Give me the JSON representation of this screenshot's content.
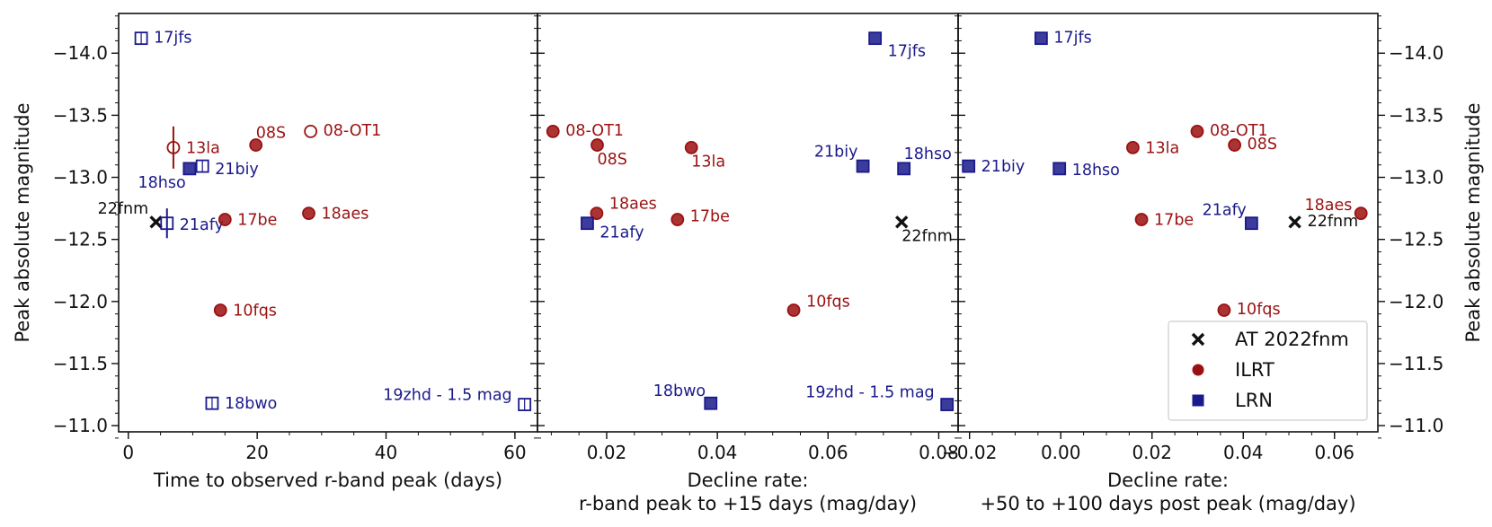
{
  "colors": {
    "ILRT": "#9b1111",
    "LRN": "#1a1a8c",
    "AT": "#111111",
    "axis": "#111111"
  },
  "legend": [
    {
      "name": "AT 2022fnm",
      "marker": "x",
      "color": "#111111"
    },
    {
      "name": "ILRT",
      "marker": "circle",
      "color": "#9b1111"
    },
    {
      "name": "LRN",
      "marker": "square",
      "color": "#1a1a8c"
    }
  ],
  "ylabel_left": "Peak absolute magnitude",
  "ylabel_right": "Peak absolute magnitude",
  "chart_data": [
    {
      "type": "scatter",
      "xlabel": "Time to observed r-band peak (days)",
      "xlim": [
        -1.5,
        63.5
      ],
      "ylim": [
        -10.95,
        -14.32
      ],
      "xticks": [
        {
          "v": 0,
          "label": "0"
        },
        {
          "v": 20,
          "label": "20"
        },
        {
          "v": 40,
          "label": "40"
        },
        {
          "v": 60,
          "label": "60"
        }
      ],
      "yticks": [
        {
          "v": -14,
          "label": "−14.0"
        },
        {
          "v": -13.5,
          "label": "−13.5"
        },
        {
          "v": -13,
          "label": "−13.0"
        },
        {
          "v": -12.5,
          "label": "−12.5"
        },
        {
          "v": -12,
          "label": "−12.0"
        },
        {
          "v": -11.5,
          "label": "−11.5"
        },
        {
          "v": -11,
          "label": "−11.0"
        }
      ],
      "points": [
        {
          "name": "17jfs",
          "x": 2.0,
          "y": -14.12,
          "class": "LRN",
          "filled": false,
          "label": "17jfs",
          "lx": 1.0,
          "ly": 0.1
        },
        {
          "name": "13la",
          "x": 7.0,
          "y": -13.24,
          "class": "ILRT",
          "filled": false,
          "label": "13la",
          "lx": 1.0,
          "ly": 0.0,
          "yerr": 0.17
        },
        {
          "name": "08S",
          "x": 19.8,
          "y": -13.26,
          "class": "ILRT",
          "filled": true,
          "label": "08S",
          "lx": 0.0,
          "ly": 1.0
        },
        {
          "name": "08-OT1",
          "x": 28.3,
          "y": -13.37,
          "class": "ILRT",
          "filled": false,
          "label": "08-OT1",
          "lx": 1.0,
          "ly": 0.1
        },
        {
          "name": "18hso",
          "x": 9.5,
          "y": -13.07,
          "class": "LRN",
          "filled": true,
          "label": "18hso",
          "lx": -0.3,
          "ly": -1.1
        },
        {
          "name": "21biy",
          "x": 11.5,
          "y": -13.09,
          "class": "LRN",
          "filled": false,
          "label": "21biy",
          "lx": 1.0,
          "ly": -0.2
        },
        {
          "name": "22fnm",
          "x": 4.3,
          "y": -12.64,
          "class": "AT",
          "filled": true,
          "label": "22fnm",
          "lx": -0.6,
          "ly": 1.1
        },
        {
          "name": "21afy",
          "x": 6.0,
          "y": -12.63,
          "class": "LRN",
          "filled": false,
          "label": "21afy",
          "lx": 1.0,
          "ly": -0.1,
          "yerr": 0.12
        },
        {
          "name": "17be",
          "x": 15.0,
          "y": -12.66,
          "class": "ILRT",
          "filled": true,
          "label": "17be",
          "lx": 1.0,
          "ly": 0.0
        },
        {
          "name": "18aes",
          "x": 28.0,
          "y": -12.71,
          "class": "ILRT",
          "filled": true,
          "label": "18aes",
          "lx": 1.0,
          "ly": 0.0
        },
        {
          "name": "10fqs",
          "x": 14.3,
          "y": -11.93,
          "class": "ILRT",
          "filled": true,
          "label": "10fqs",
          "lx": 1.0,
          "ly": 0.0
        },
        {
          "name": "18bwo",
          "x": 13.0,
          "y": -11.18,
          "class": "LRN",
          "filled": false,
          "label": "18bwo",
          "lx": 1.0,
          "ly": 0.0
        },
        {
          "name": "19zhd",
          "x": 61.5,
          "y": -11.17,
          "class": "LRN",
          "filled": false,
          "label": "19zhd - 1.5 mag",
          "lx": -1.0,
          "ly": 0.8
        }
      ]
    },
    {
      "type": "scatter",
      "xlabel": "Decline rate:\nr-band peak to +15 days (mag/day)",
      "xlim": [
        0.0075,
        0.0835
      ],
      "ylim": [
        -10.95,
        -14.32
      ],
      "xticks": [
        {
          "v": 0.02,
          "label": "0.02"
        },
        {
          "v": 0.04,
          "label": "0.04"
        },
        {
          "v": 0.06,
          "label": "0.06"
        },
        {
          "v": 0.08,
          "label": "0.08"
        }
      ],
      "yticks": [
        {
          "v": -14
        },
        {
          "v": -13.5
        },
        {
          "v": -13
        },
        {
          "v": -12.5
        },
        {
          "v": -12
        },
        {
          "v": -11.5
        },
        {
          "v": -11
        }
      ],
      "points": [
        {
          "name": "17jfs",
          "x": 0.0685,
          "y": -14.12,
          "class": "LRN",
          "filled": true,
          "label": "17jfs",
          "lx": 1.0,
          "ly": -1.0
        },
        {
          "name": "08-OT1",
          "x": 0.0103,
          "y": -13.37,
          "class": "ILRT",
          "filled": true,
          "label": "08-OT1",
          "lx": 1.0,
          "ly": 0.1
        },
        {
          "name": "08S",
          "x": 0.0183,
          "y": -13.26,
          "class": "ILRT",
          "filled": true,
          "label": "08S",
          "lx": 0.0,
          "ly": -1.1
        },
        {
          "name": "13la",
          "x": 0.0353,
          "y": -13.24,
          "class": "ILRT",
          "filled": true,
          "label": "13la",
          "lx": 0.0,
          "ly": -1.1
        },
        {
          "name": "21biy",
          "x": 0.0663,
          "y": -13.09,
          "class": "LRN",
          "filled": true,
          "label": "21biy",
          "lx": -0.4,
          "ly": 1.2
        },
        {
          "name": "18hso",
          "x": 0.0737,
          "y": -13.07,
          "class": "LRN",
          "filled": true,
          "label": "18hso",
          "lx": 0.0,
          "ly": 1.2
        },
        {
          "name": "18aes",
          "x": 0.0182,
          "y": -12.71,
          "class": "ILRT",
          "filled": true,
          "label": "18aes",
          "lx": 1.0,
          "ly": 0.8
        },
        {
          "name": "21afy",
          "x": 0.0165,
          "y": -12.63,
          "class": "LRN",
          "filled": true,
          "label": "21afy",
          "lx": 1.0,
          "ly": -0.7
        },
        {
          "name": "17be",
          "x": 0.0328,
          "y": -12.66,
          "class": "ILRT",
          "filled": true,
          "label": "17be",
          "lx": 1.0,
          "ly": 0.3
        },
        {
          "name": "22fnm",
          "x": 0.0733,
          "y": -12.64,
          "class": "AT",
          "filled": true,
          "label": "22fnm",
          "lx": 0.0,
          "ly": -1.1
        },
        {
          "name": "10fqs",
          "x": 0.0538,
          "y": -11.93,
          "class": "ILRT",
          "filled": true,
          "label": "10fqs",
          "lx": 1.0,
          "ly": 0.7
        },
        {
          "name": "18bwo",
          "x": 0.0388,
          "y": -11.18,
          "class": "LRN",
          "filled": true,
          "label": "18bwo",
          "lx": -0.4,
          "ly": 1.0
        },
        {
          "name": "19zhd",
          "x": 0.0815,
          "y": -11.17,
          "class": "LRN",
          "filled": true,
          "label": "19zhd - 1.5 mag",
          "lx": -1.0,
          "ly": 1.0
        }
      ]
    },
    {
      "type": "scatter",
      "xlabel": "Decline rate:\n+50 to +100 days post peak (mag/day)",
      "xlim": [
        -0.0225,
        0.0695
      ],
      "ylim": [
        -10.95,
        -14.32
      ],
      "xticks": [
        {
          "v": -0.02,
          "label": "−0.02"
        },
        {
          "v": 0.0,
          "label": "0.00"
        },
        {
          "v": 0.02,
          "label": "0.02"
        },
        {
          "v": 0.04,
          "label": "0.04"
        },
        {
          "v": 0.06,
          "label": "0.06"
        }
      ],
      "yticks": [
        {
          "v": -14,
          "label": "−14.0"
        },
        {
          "v": -13.5,
          "label": "−13.5"
        },
        {
          "v": -13,
          "label": "−13.0"
        },
        {
          "v": -12.5,
          "label": "−12.5"
        },
        {
          "v": -12,
          "label": "−12.0"
        },
        {
          "v": -11.5,
          "label": "−11.5"
        },
        {
          "v": -11,
          "label": "−11.0"
        }
      ],
      "points": [
        {
          "name": "17jfs",
          "x": -0.0043,
          "y": -14.12,
          "class": "LRN",
          "filled": true,
          "label": "17jfs",
          "lx": 1.0,
          "ly": 0.1
        },
        {
          "name": "08-OT1",
          "x": 0.0299,
          "y": -13.37,
          "class": "ILRT",
          "filled": true,
          "label": "08-OT1",
          "lx": 1.0,
          "ly": 0.1
        },
        {
          "name": "08S",
          "x": 0.0381,
          "y": -13.26,
          "class": "ILRT",
          "filled": true,
          "label": "08S",
          "lx": 1.0,
          "ly": 0.1
        },
        {
          "name": "13la",
          "x": 0.0158,
          "y": -13.24,
          "class": "ILRT",
          "filled": true,
          "label": "13la",
          "lx": 1.0,
          "ly": 0.0
        },
        {
          "name": "21biy",
          "x": -0.0202,
          "y": -13.09,
          "class": "LRN",
          "filled": true,
          "label": "21biy",
          "lx": 1.0,
          "ly": 0.0
        },
        {
          "name": "18hso",
          "x": -0.0003,
          "y": -13.07,
          "class": "LRN",
          "filled": true,
          "label": "18hso",
          "lx": 1.0,
          "ly": -0.1
        },
        {
          "name": "18aes",
          "x": 0.0658,
          "y": -12.71,
          "class": "ILRT",
          "filled": true,
          "label": "18aes",
          "lx": -0.7,
          "ly": 0.7
        },
        {
          "name": "17be",
          "x": 0.0177,
          "y": -12.66,
          "class": "ILRT",
          "filled": true,
          "label": "17be",
          "lx": 1.0,
          "ly": 0.0
        },
        {
          "name": "21afy",
          "x": 0.0418,
          "y": -12.63,
          "class": "LRN",
          "filled": true,
          "label": "21afy",
          "lx": -0.4,
          "ly": 1.1
        },
        {
          "name": "22fnm",
          "x": 0.0513,
          "y": -12.64,
          "class": "AT",
          "filled": true,
          "label": "22fnm",
          "lx": 1.0,
          "ly": 0.1
        },
        {
          "name": "10fqs",
          "x": 0.0358,
          "y": -11.93,
          "class": "ILRT",
          "filled": true,
          "label": "10fqs",
          "lx": 1.0,
          "ly": 0.1
        }
      ]
    }
  ]
}
